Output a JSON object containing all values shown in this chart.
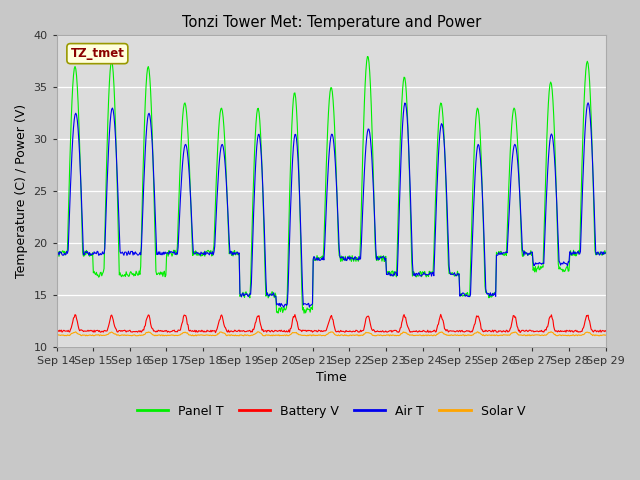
{
  "title": "Tonzi Tower Met: Temperature and Power",
  "xlabel": "Time",
  "ylabel": "Temperature (C) / Power (V)",
  "ylim": [
    10,
    40
  ],
  "annotation": "TZ_tmet",
  "annotation_color": "#8B0000",
  "annotation_bg": "#FFFFDD",
  "bg_color": "#C8C8C8",
  "plot_bg": "#DCDCDC",
  "x_tick_labels": [
    "Sep 14",
    "Sep 15",
    "Sep 16",
    "Sep 17",
    "Sep 18",
    "Sep 19",
    "Sep 20",
    "Sep 21",
    "Sep 22",
    "Sep 23",
    "Sep 24",
    "Sep 25",
    "Sep 26",
    "Sep 27",
    "Sep 28",
    "Sep 29"
  ],
  "colors": {
    "panel_t": "#00EE00",
    "battery_v": "#FF0000",
    "air_t": "#0000EE",
    "solar_v": "#FFA500"
  },
  "legend_labels": [
    "Panel T",
    "Battery V",
    "Air T",
    "Solar V"
  ],
  "n_days": 15,
  "pts_per_day": 48,
  "panel_max": [
    37,
    37.5,
    37,
    33.5,
    33,
    33,
    34.5,
    35,
    38,
    36,
    33.5,
    33,
    33,
    35.5,
    37.5
  ],
  "panel_min": [
    19,
    17,
    17,
    19,
    19,
    15,
    13.5,
    18.5,
    18.5,
    17,
    17,
    15,
    19,
    17.5,
    19
  ],
  "air_max": [
    32.5,
    33,
    32.5,
    29.5,
    29.5,
    30.5,
    30.5,
    30.5,
    31,
    33.5,
    31.5,
    29.5,
    29.5,
    30.5,
    33.5
  ],
  "air_min": [
    19,
    19,
    19,
    19,
    19,
    15,
    14,
    18.5,
    18.5,
    17,
    17,
    15,
    19,
    18,
    19
  ]
}
